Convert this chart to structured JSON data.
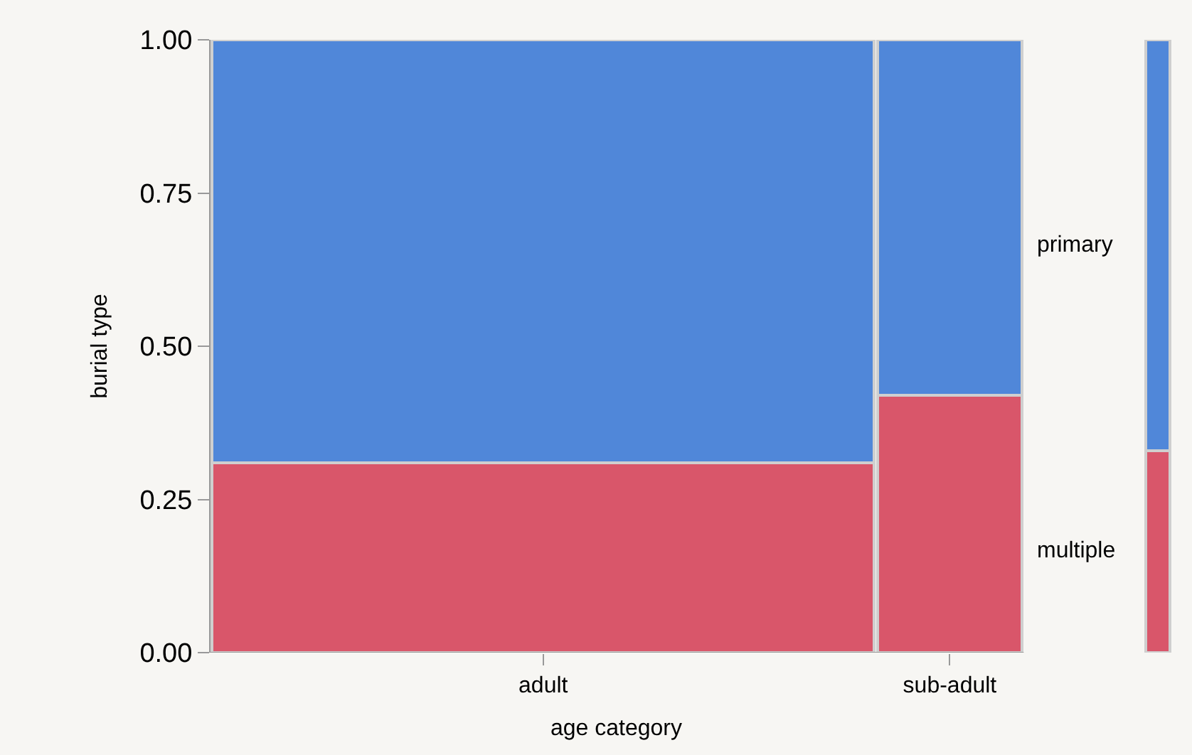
{
  "chart_data": {
    "type": "bar",
    "stacked": true,
    "categories": [
      "adult",
      "sub-adult",
      null
    ],
    "series": [
      {
        "name": "multiple",
        "color": "#d9566a",
        "values": [
          0.31,
          0.42,
          0.33
        ]
      },
      {
        "name": "primary",
        "color": "#5087d9",
        "values": [
          0.69,
          0.58,
          0.67
        ]
      }
    ],
    "xlabel": "age category",
    "ylabel": "burial type",
    "ylim": [
      0,
      1
    ],
    "yticks": [
      {
        "value": 0,
        "label": "0.00"
      },
      {
        "value": 0.25,
        "label": "0.25"
      },
      {
        "value": 0.5,
        "label": "0.50"
      },
      {
        "value": 0.75,
        "label": "0.75"
      },
      {
        "value": 1,
        "label": "1.00"
      }
    ],
    "grid": false,
    "legend": false
  }
}
